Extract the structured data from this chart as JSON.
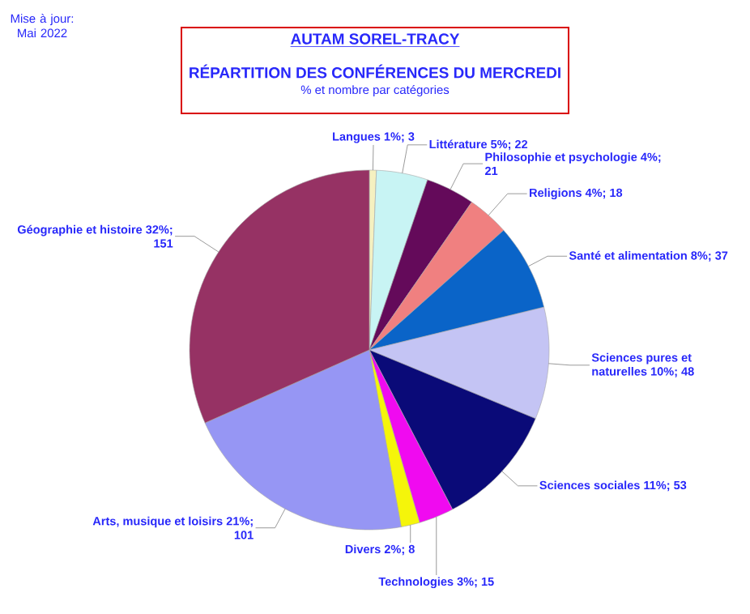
{
  "chart_data": {
    "type": "pie",
    "title": "AUTAM SOREL-TRACY",
    "subtitle": "RÉPARTITION DES CONFÉRENCES DU MERCREDI",
    "annotations": [
      "% et nombre par catégories",
      "Mise à jour: Mai 2022"
    ],
    "categories": [
      "Langues",
      "Littérature",
      "Philosophie et psychologie",
      "Religions",
      "Santé et alimentation",
      "Sciences pures et naturelles",
      "Sciences sociales",
      "Technologies",
      "Divers",
      "Arts, musique et loisirs",
      "Géographie et histoire"
    ],
    "values": [
      3,
      22,
      21,
      18,
      37,
      48,
      53,
      15,
      8,
      101,
      151
    ],
    "value_labels": [
      "1%; 3",
      "5%; 22",
      "4%; 21",
      "4%; 18",
      "8%; 37",
      "10%; 48",
      "11%; 53",
      "3%; 15",
      "2%; 8",
      "21%; 101",
      "32%; 151"
    ],
    "colors": [
      "#f5f0c0",
      "#c8f4f4",
      "#640a5a",
      "#f08080",
      "#0a64c8",
      "#c4c4f4",
      "#0a0a78",
      "#f00af0",
      "#f5f50a",
      "#9696f4",
      "#963264"
    ]
  }
}
